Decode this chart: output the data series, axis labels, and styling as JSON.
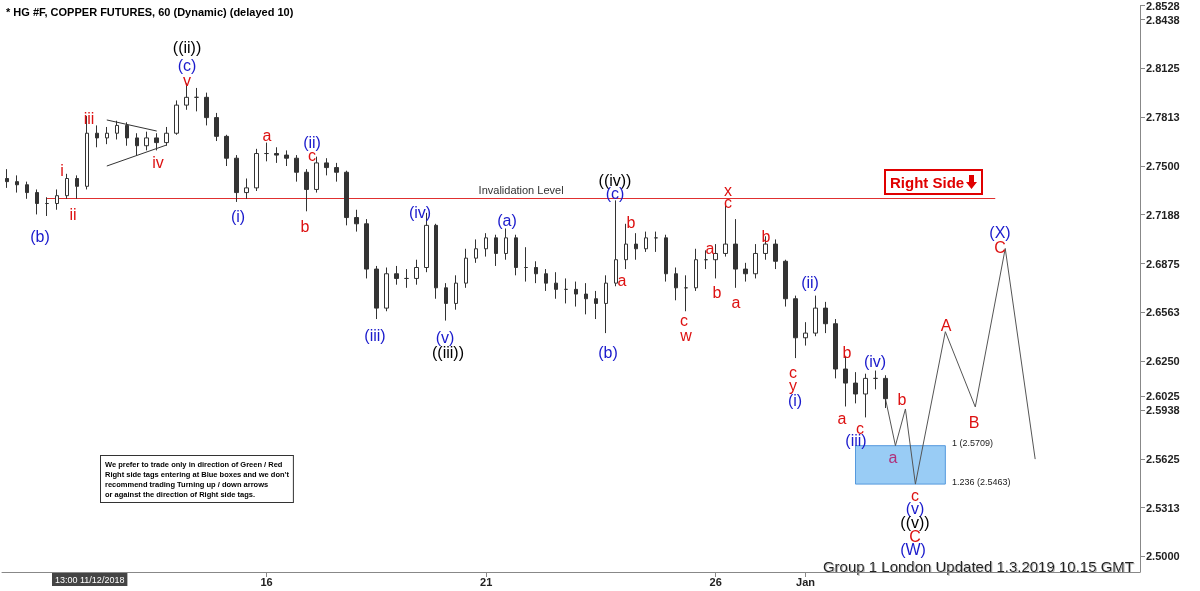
{
  "chart_data": {
    "type": "candlestick",
    "title": "* HG #F, COPPER FUTURES, 60 (Dynamic) (delayed 10)",
    "categories": [
      null,
      null,
      null,
      null,
      null,
      null,
      null,
      null,
      null,
      null,
      null,
      null,
      null,
      null,
      null,
      null,
      null,
      null,
      null,
      null,
      null,
      null,
      null,
      null,
      null,
      null,
      "16",
      null,
      null,
      null,
      null,
      null,
      null,
      null,
      null,
      null,
      null,
      null,
      null,
      null,
      null,
      null,
      null,
      null,
      null,
      null,
      null,
      null,
      "21",
      null,
      null,
      null,
      null,
      null,
      null,
      null,
      null,
      null,
      null,
      null,
      null,
      null,
      null,
      null,
      null,
      null,
      null,
      null,
      null,
      null,
      null,
      "26",
      null,
      null,
      null,
      null,
      null,
      null,
      null,
      null,
      "Jan",
      null,
      null,
      null,
      null,
      null,
      null,
      null,
      null,
      null,
      null,
      null,
      null,
      null,
      null,
      null,
      null,
      null,
      null,
      null,
      null,
      null,
      null,
      null,
      null,
      null,
      null,
      null,
      null,
      null,
      null,
      null,
      null,
      null
    ],
    "ohlc": [
      [
        2.742,
        2.748,
        2.736,
        2.74
      ],
      [
        2.74,
        2.744,
        2.733,
        2.738
      ],
      [
        2.738,
        2.74,
        2.729,
        2.733
      ],
      [
        2.733,
        2.735,
        2.719,
        2.726
      ],
      [
        2.726,
        2.73,
        2.718,
        2.726
      ],
      [
        2.726,
        2.735,
        2.722,
        2.731
      ],
      [
        2.731,
        2.745,
        2.729,
        2.742
      ],
      [
        2.742,
        2.744,
        2.729,
        2.737
      ],
      [
        2.737,
        2.782,
        2.735,
        2.771
      ],
      [
        2.771,
        2.776,
        2.762,
        2.768
      ],
      [
        2.768,
        2.775,
        2.764,
        2.771
      ],
      [
        2.771,
        2.779,
        2.767,
        2.776
      ],
      [
        2.776,
        2.778,
        2.763,
        2.768
      ],
      [
        2.768,
        2.771,
        2.757,
        2.763
      ],
      [
        2.763,
        2.772,
        2.76,
        2.768
      ],
      [
        2.768,
        2.771,
        2.76,
        2.765
      ],
      [
        2.765,
        2.775,
        2.763,
        2.771
      ],
      [
        2.771,
        2.792,
        2.77,
        2.789
      ],
      [
        2.789,
        2.803,
        2.786,
        2.794
      ],
      [
        2.794,
        2.8,
        2.785,
        2.794
      ],
      [
        2.794,
        2.797,
        2.776,
        2.781
      ],
      [
        2.781,
        2.784,
        2.766,
        2.769
      ],
      [
        2.769,
        2.77,
        2.75,
        2.755
      ],
      [
        2.755,
        2.757,
        2.727,
        2.733
      ],
      [
        2.733,
        2.742,
        2.729,
        2.736
      ],
      [
        2.736,
        2.761,
        2.734,
        2.758
      ],
      [
        2.758,
        2.765,
        2.753,
        2.758
      ],
      [
        2.758,
        2.762,
        2.752,
        2.757
      ],
      [
        2.757,
        2.76,
        2.75,
        2.755
      ],
      [
        2.755,
        2.757,
        2.74,
        2.746
      ],
      [
        2.746,
        2.748,
        2.721,
        2.735
      ],
      [
        2.735,
        2.756,
        2.733,
        2.752
      ],
      [
        2.752,
        2.755,
        2.744,
        2.749
      ],
      [
        2.749,
        2.752,
        2.74,
        2.746
      ],
      [
        2.746,
        2.747,
        2.712,
        2.717
      ],
      [
        2.717,
        2.722,
        2.708,
        2.713
      ],
      [
        2.713,
        2.716,
        2.678,
        2.684
      ],
      [
        2.684,
        2.686,
        2.652,
        2.659
      ],
      [
        2.659,
        2.685,
        2.657,
        2.681
      ],
      [
        2.681,
        2.686,
        2.674,
        2.678
      ],
      [
        2.678,
        2.684,
        2.672,
        2.678
      ],
      [
        2.678,
        2.69,
        2.674,
        2.685
      ],
      [
        2.685,
        2.72,
        2.682,
        2.712
      ],
      [
        2.712,
        2.713,
        2.665,
        2.672
      ],
      [
        2.672,
        2.675,
        2.651,
        2.662
      ],
      [
        2.662,
        2.68,
        2.658,
        2.675
      ],
      [
        2.675,
        2.697,
        2.672,
        2.691
      ],
      [
        2.691,
        2.703,
        2.688,
        2.697
      ],
      [
        2.697,
        2.707,
        2.692,
        2.704
      ],
      [
        2.704,
        2.706,
        2.686,
        2.694
      ],
      [
        2.694,
        2.71,
        2.69,
        2.704
      ],
      [
        2.704,
        2.706,
        2.68,
        2.685
      ],
      [
        2.685,
        2.698,
        2.676,
        2.685
      ],
      [
        2.685,
        2.689,
        2.675,
        2.681
      ],
      [
        2.681,
        2.684,
        2.67,
        2.675
      ],
      [
        2.675,
        2.682,
        2.665,
        2.671
      ],
      [
        2.671,
        2.678,
        2.662,
        2.671
      ],
      [
        2.671,
        2.676,
        2.66,
        2.668
      ],
      [
        2.668,
        2.675,
        2.655,
        2.665
      ],
      [
        2.665,
        2.67,
        2.652,
        2.662
      ],
      [
        2.662,
        2.68,
        2.643,
        2.675
      ],
      [
        2.675,
        2.728,
        2.673,
        2.69
      ],
      [
        2.69,
        2.713,
        2.684,
        2.7
      ],
      [
        2.7,
        2.707,
        2.69,
        2.697
      ],
      [
        2.697,
        2.708,
        2.695,
        2.704
      ],
      [
        2.704,
        2.708,
        2.695,
        2.704
      ],
      [
        2.704,
        2.706,
        2.676,
        2.681
      ],
      [
        2.681,
        2.685,
        2.664,
        2.672
      ],
      [
        2.672,
        2.68,
        2.657,
        2.672
      ],
      [
        2.672,
        2.697,
        2.67,
        2.69
      ],
      [
        2.69,
        2.696,
        2.684,
        2.69
      ],
      [
        2.69,
        2.7,
        2.678,
        2.694
      ],
      [
        2.694,
        2.725,
        2.692,
        2.7
      ],
      [
        2.7,
        2.716,
        2.672,
        2.684
      ],
      [
        2.684,
        2.688,
        2.676,
        2.681
      ],
      [
        2.681,
        2.7,
        2.678,
        2.694
      ],
      [
        2.694,
        2.705,
        2.69,
        2.7
      ],
      [
        2.7,
        2.703,
        2.684,
        2.689
      ],
      [
        2.689,
        2.69,
        2.66,
        2.665
      ],
      [
        2.665,
        2.667,
        2.627,
        2.64
      ],
      [
        2.64,
        2.65,
        2.635,
        2.643
      ],
      [
        2.643,
        2.667,
        2.641,
        2.659
      ],
      [
        2.659,
        2.663,
        2.643,
        2.649
      ],
      [
        2.649,
        2.652,
        2.614,
        2.62
      ],
      [
        2.62,
        2.628,
        2.596,
        2.611
      ],
      [
        2.611,
        2.618,
        2.598,
        2.604
      ],
      [
        2.604,
        2.617,
        2.589,
        2.614
      ],
      [
        2.614,
        2.619,
        2.607,
        2.614
      ],
      [
        2.614,
        2.616,
        2.595,
        2.601
      ],
      null,
      null,
      null,
      null,
      null,
      null,
      null,
      null,
      null,
      null,
      null,
      null,
      null,
      null,
      null,
      null,
      null,
      null,
      null,
      null,
      null,
      null,
      null,
      null,
      null
    ],
    "color": "#333333",
    "series": [
      {
        "type": "line",
        "color": "#555555",
        "values": [
          null,
          null,
          null,
          null,
          null,
          null,
          null,
          null,
          null,
          null,
          null,
          null,
          null,
          null,
          null,
          null,
          null,
          null,
          null,
          null,
          null,
          null,
          null,
          null,
          null,
          null,
          null,
          null,
          null,
          null,
          null,
          null,
          null,
          null,
          null,
          null,
          null,
          null,
          null,
          null,
          null,
          null,
          null,
          null,
          null,
          null,
          null,
          null,
          null,
          null,
          null,
          null,
          null,
          null,
          null,
          null,
          null,
          null,
          null,
          null,
          null,
          null,
          null,
          null,
          null,
          null,
          null,
          null,
          null,
          null,
          null,
          null,
          null,
          null,
          null,
          null,
          null,
          null,
          null,
          null,
          null,
          null,
          null,
          null,
          null,
          null,
          null,
          null,
          2.601,
          2.5709,
          2.5944,
          2.5463,
          null,
          null,
          2.6439,
          null,
          null,
          2.5957,
          null,
          null,
          2.6972,
          null,
          null,
          2.5623,
          null,
          null,
          null,
          null,
          null,
          null,
          null,
          null,
          null,
          null
        ]
      },
      {
        "type": "line",
        "color": "#333333",
        "values": [
          null,
          null,
          null,
          null,
          null,
          null,
          null,
          null,
          null,
          null,
          2.7795,
          null,
          null,
          null,
          null,
          2.7724,
          null,
          null,
          null,
          null,
          null,
          null,
          null,
          null,
          null,
          null,
          null,
          null,
          null,
          null,
          null,
          null,
          null,
          null,
          null,
          null,
          null,
          null,
          null,
          null,
          null,
          null,
          null,
          null,
          null,
          null,
          null,
          null,
          null,
          null,
          null,
          null,
          null,
          null,
          null,
          null,
          null,
          null,
          null,
          null,
          null,
          null,
          null,
          null,
          null,
          null,
          null,
          null,
          null,
          null,
          null,
          null,
          null,
          null,
          null,
          null,
          null,
          null,
          null,
          null,
          null,
          null,
          null,
          null,
          null,
          null,
          null,
          null,
          null,
          null,
          null,
          null,
          null,
          null,
          null,
          null,
          null,
          null,
          null,
          null,
          null,
          null,
          null,
          null,
          null,
          null,
          null,
          null,
          null,
          null,
          null,
          null,
          null,
          null
        ]
      },
      {
        "type": "line",
        "color": "#333333",
        "values": [
          null,
          null,
          null,
          null,
          null,
          null,
          null,
          null,
          null,
          null,
          2.75,
          null,
          null,
          null,
          null,
          null,
          2.7635,
          null,
          null,
          null,
          null,
          null,
          null,
          null,
          null,
          null,
          null,
          null,
          null,
          null,
          null,
          null,
          null,
          null,
          null,
          null,
          null,
          null,
          null,
          null,
          null,
          null,
          null,
          null,
          null,
          null,
          null,
          null,
          null,
          null,
          null,
          null,
          null,
          null,
          null,
          null,
          null,
          null,
          null,
          null,
          null,
          null,
          null,
          null,
          null,
          null,
          null,
          null,
          null,
          null,
          null,
          null,
          null,
          null,
          null,
          null,
          null,
          null,
          null,
          null,
          null,
          null,
          null,
          null,
          null,
          null,
          null,
          null,
          null,
          null,
          null,
          null,
          null,
          null,
          null,
          null,
          null,
          null,
          null,
          null,
          null,
          null,
          null,
          null,
          null,
          null,
          null,
          null,
          null,
          null,
          null,
          null,
          null,
          null
        ]
      }
    ],
    "ylim": [
      2.49,
      2.8528
    ],
    "yticks": [
      {
        "value": 2.5,
        "label": "2.5000"
      },
      2.5313,
      2.5625,
      2.5938,
      {
        "value": 2.625,
        "label": "2.6250"
      },
      2.6563,
      2.6875,
      2.7188,
      {
        "value": 2.75,
        "label": "2.7500"
      },
      2.7813,
      2.8125,
      2.8438,
      2.8528,
      2.6025
    ],
    "ref_lines": [
      {
        "axis": "y",
        "value": 2.7294,
        "label": "Invalidation Level",
        "color": "#e03030"
      }
    ],
    "bands": [
      {
        "axis": "y",
        "from": 2.5463,
        "to": 2.5709,
        "color": "#99ccf5"
      }
    ],
    "grid": false,
    "legend": false,
    "annotations": [
      "((ii))",
      "(c)",
      "v",
      "iii",
      "i",
      "ii",
      "(b)",
      "iv",
      "a",
      "(ii)",
      "c",
      "b",
      "(i)",
      "(iii)",
      "(iv)",
      "(v)",
      "((iii))",
      "(a)",
      "((iv))",
      "(c)",
      "b",
      "a",
      "(b)",
      "c",
      "w",
      "a",
      "b",
      "x",
      "c",
      "a",
      "b",
      "(ii)",
      "c",
      "y",
      "(i)",
      "b",
      "(iv)",
      "a",
      "c",
      "(iii)",
      "b",
      "a",
      "c",
      "(v)",
      "((v))",
      "C",
      "(W)",
      "A",
      "B",
      "(X)",
      "C",
      "1 (2.5709)",
      "1.236 (2.5463)",
      "Right Side",
      "We prefer to trade only in direction of Green / Red\nRight side tags entering at Blue boxes and we don't\nrecommend trading Turning up / down arrows\nor against the direction of Right side tags.",
      "Group 1 London Updated 1.3.2019 10.15 GMT",
      "13:00 11/12/2018"
    ]
  }
}
